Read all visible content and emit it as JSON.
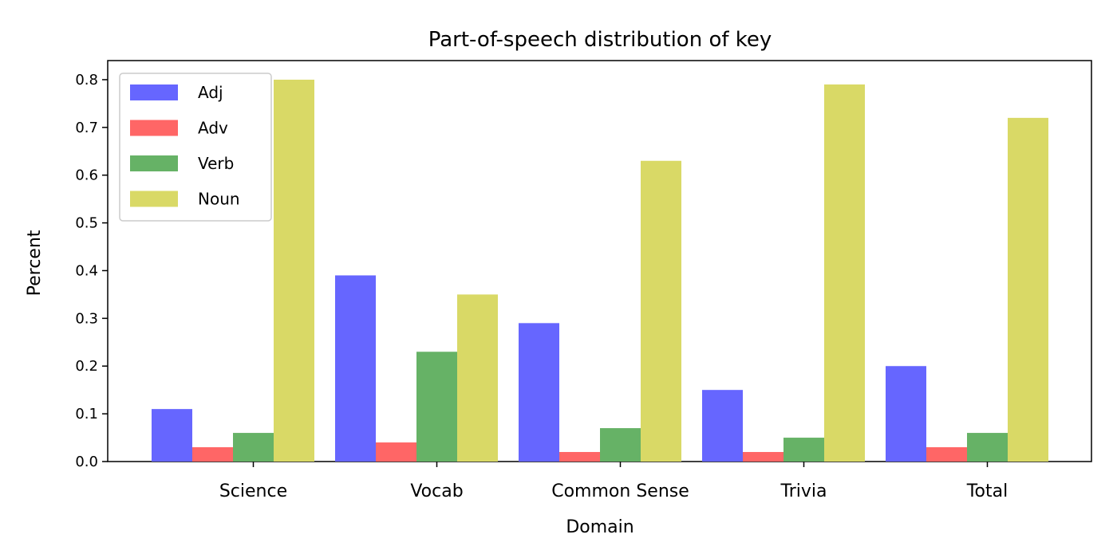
{
  "chart_data": {
    "type": "bar",
    "title": "Part-of-speech distribution of key",
    "xlabel": "Domain",
    "ylabel": "Percent",
    "categories": [
      "Science",
      "Vocab",
      "Common Sense",
      "Trivia",
      "Total"
    ],
    "series": [
      {
        "name": "Adj",
        "color": "#6666ff",
        "values": [
          0.11,
          0.39,
          0.29,
          0.15,
          0.2
        ]
      },
      {
        "name": "Adv",
        "color": "#ff6666",
        "values": [
          0.03,
          0.04,
          0.02,
          0.02,
          0.03
        ]
      },
      {
        "name": "Verb",
        "color": "#66b266",
        "values": [
          0.06,
          0.23,
          0.07,
          0.05,
          0.06
        ]
      },
      {
        "name": "Noun",
        "color": "#d9d966",
        "values": [
          0.8,
          0.35,
          0.63,
          0.79,
          0.72
        ]
      }
    ],
    "ylim": [
      0,
      0.84
    ],
    "yticks": [
      "0.0",
      "0.1",
      "0.2",
      "0.3",
      "0.4",
      "0.5",
      "0.6",
      "0.7",
      "0.8"
    ],
    "grid": false,
    "legend_position": "top-left"
  }
}
